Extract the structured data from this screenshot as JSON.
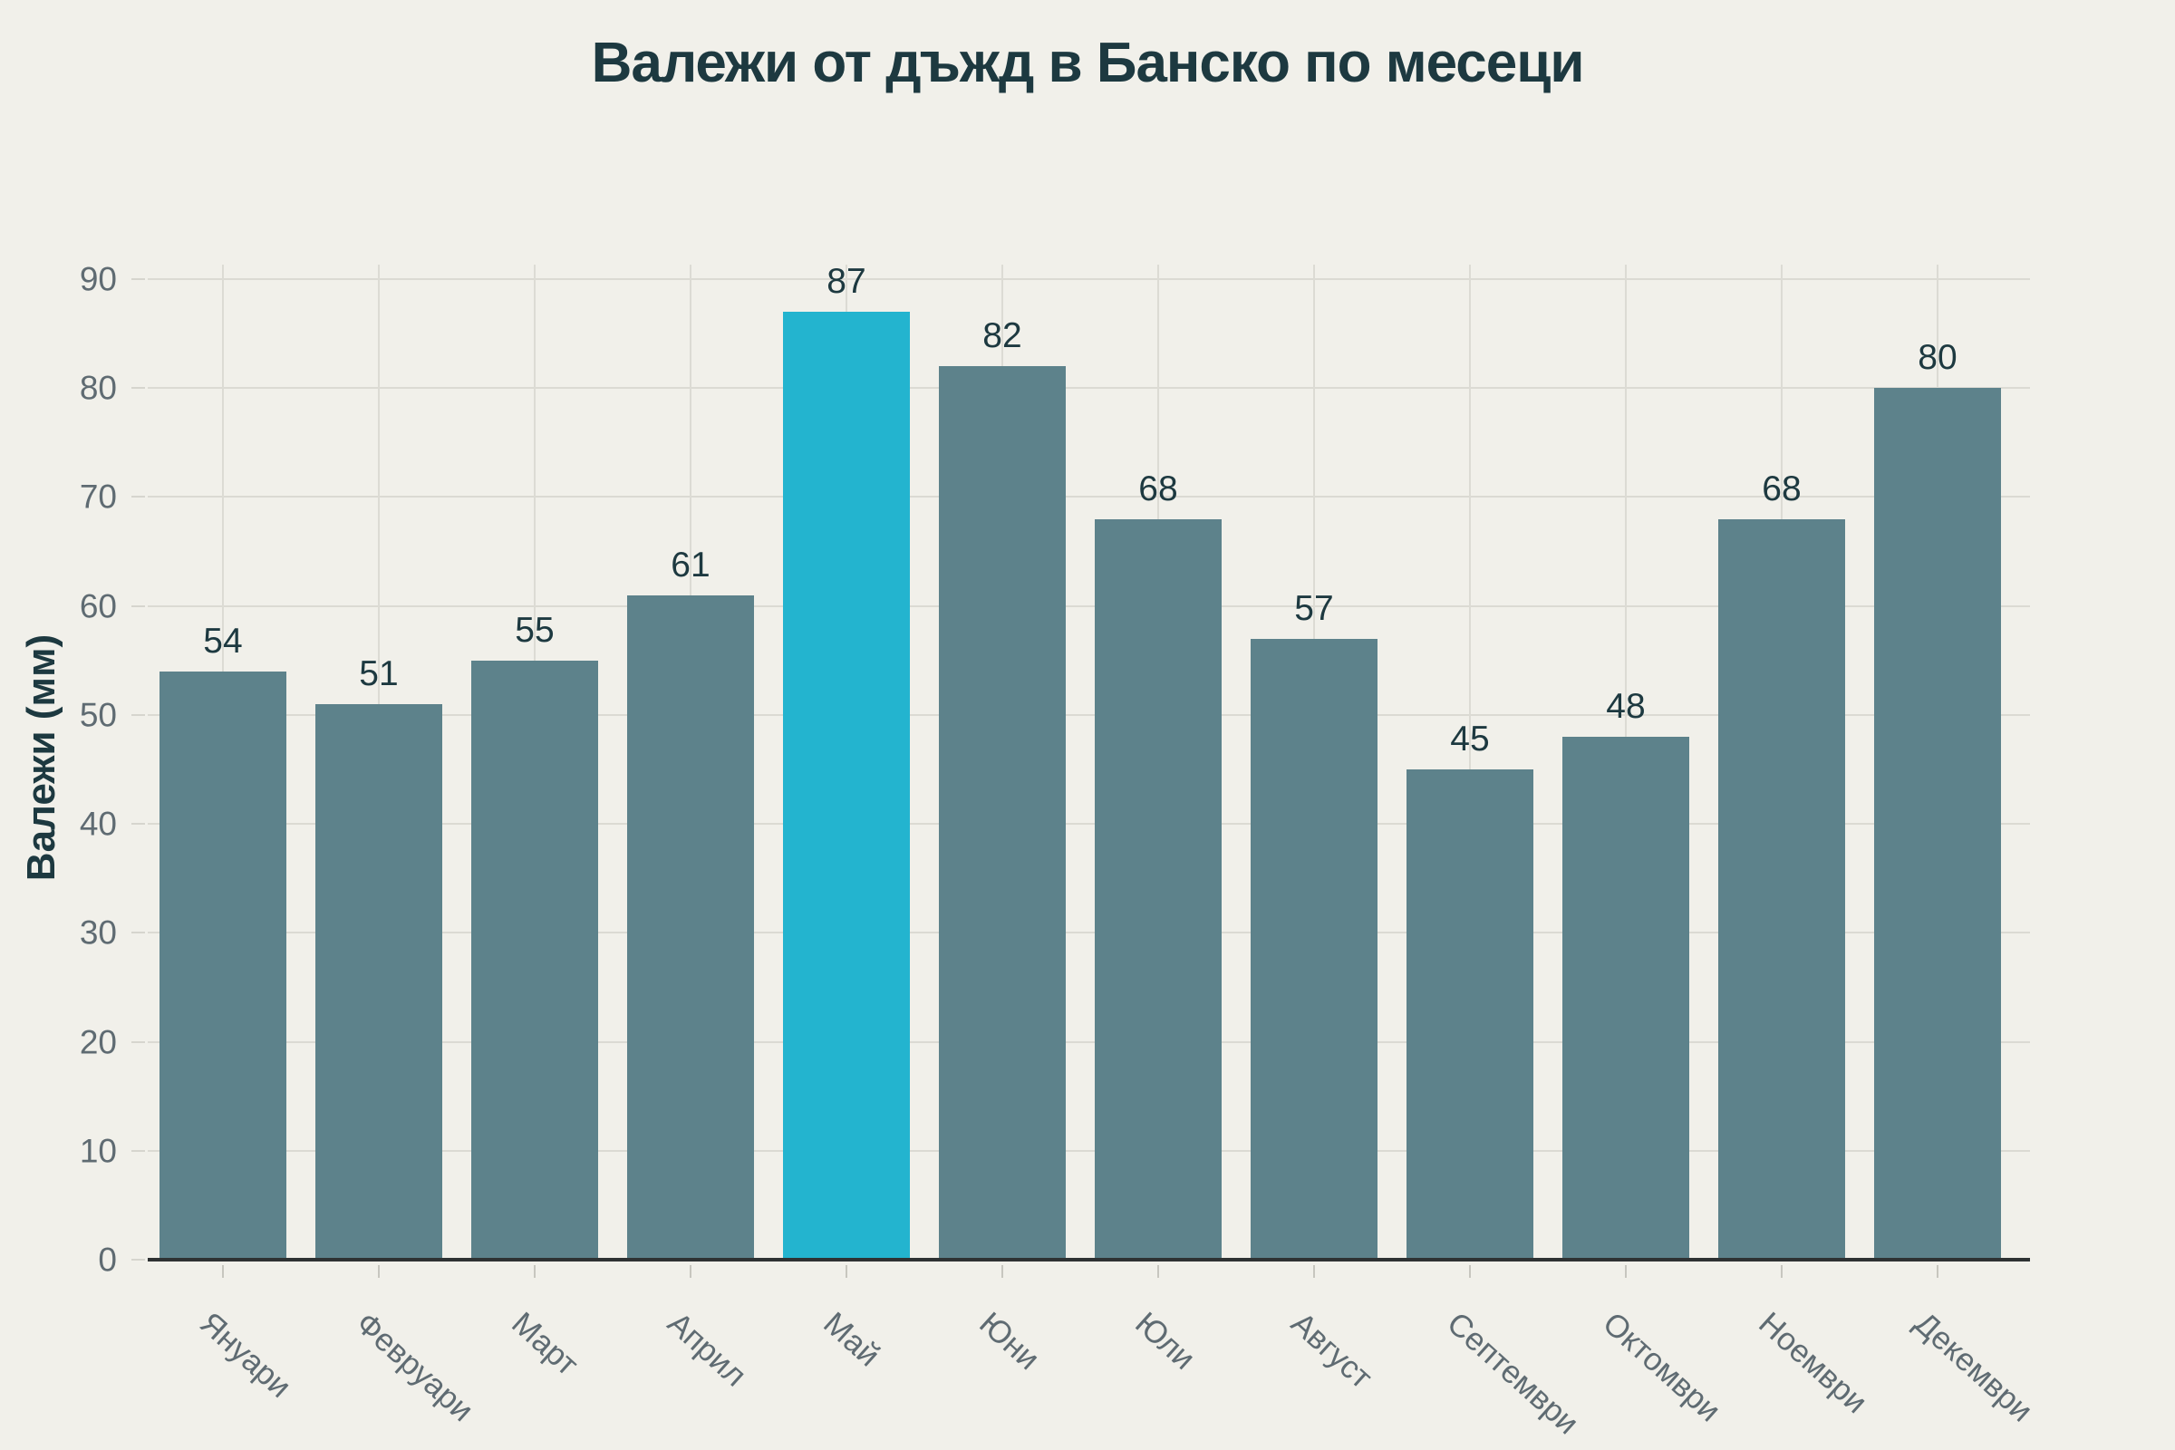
{
  "page": {
    "background": "#f1f0ea"
  },
  "chart_data": {
    "type": "bar",
    "title": "Валежи от дъжд в Банско по месеци",
    "ylabel": "Валежи (мм)",
    "xlabel": "",
    "categories": [
      "Януари",
      "Февруари",
      "Март",
      "Април",
      "Май",
      "Юни",
      "Юли",
      "Август",
      "Септември",
      "Октомври",
      "Ноември",
      "Декември"
    ],
    "values": [
      54,
      51,
      55,
      61,
      87,
      82,
      68,
      57,
      45,
      48,
      68,
      80
    ],
    "highlight_index": 4,
    "highlight_category": "Май",
    "ylim": [
      0,
      90
    ],
    "yticks": [
      0,
      10,
      20,
      30,
      40,
      50,
      60,
      70,
      80,
      90
    ],
    "grid": true,
    "legend": "none",
    "bar_color": "#5d828b",
    "highlight_color": "#23b4cf",
    "title_color": "#1d3940",
    "value_label_color": "#1d3940",
    "tick_label_color": "#5f6b72",
    "gridline_color": "#dbdad3",
    "axis_color": "#2e3233"
  }
}
